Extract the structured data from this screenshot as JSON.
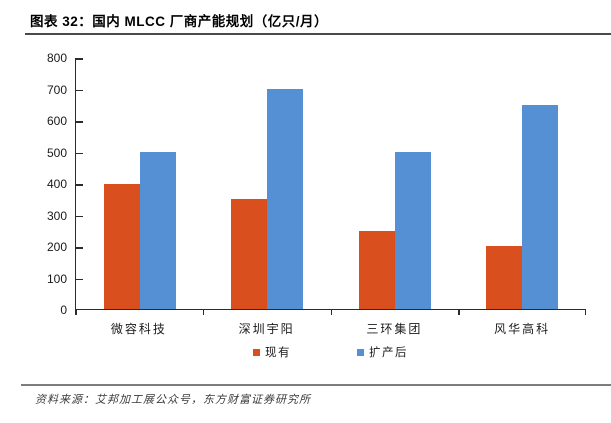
{
  "figure": {
    "title": "图表 32：国内 MLCC 厂商产能规划（亿只/月）"
  },
  "chart_data": {
    "type": "bar",
    "title": "国内 MLCC 厂商产能规划（亿只/月）",
    "categories": [
      "微容科技",
      "深圳宇阳",
      "三环集团",
      "风华高科"
    ],
    "series": [
      {
        "name": "现有",
        "color": "#D9501E",
        "values": [
          400,
          350,
          250,
          200
        ]
      },
      {
        "name": "扩产后",
        "color": "#5590D5",
        "values": [
          500,
          700,
          500,
          650
        ]
      }
    ],
    "xlabel": "",
    "ylabel": "",
    "ylim": [
      0,
      800
    ],
    "yticks": [
      0,
      100,
      200,
      300,
      400,
      500,
      600,
      700,
      800
    ],
    "grid": false,
    "legend_position": "bottom"
  },
  "footer": {
    "source": "资料来源：艾邦加工展公众号，东方财富证券研究所"
  }
}
